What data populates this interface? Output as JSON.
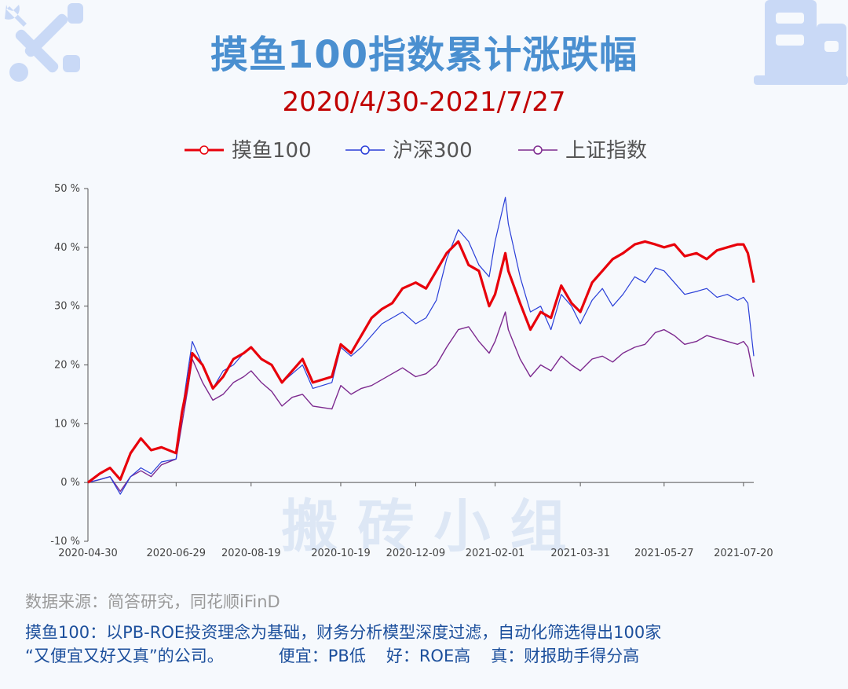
{
  "header": {
    "title": "摸鱼100指数累计涨跌幅",
    "subtitle": "2020/4/30-2021/7/27"
  },
  "watermark": "搬 砖 小 组",
  "footer": {
    "source": "数据来源：简答研究，同花顺iFinD",
    "line1": "摸鱼100：以PB-ROE投资理念为基础，财务分析模型深度过滤，自动化筛选得出100家",
    "line2a": "“又便宜又好又真”的公司。",
    "line2b": "便宜：PB低",
    "line2c": "好：ROE高",
    "line2d": "真：财报助手得分高"
  },
  "colors": {
    "title": "#4a8fd0",
    "subtitle": "#c00000",
    "moyu": "#e8000b",
    "hs300": "#2a3fd8",
    "sz": "#7d2a8f"
  },
  "chart_data": {
    "type": "line",
    "title": "摸鱼100指数累计涨跌幅",
    "subtitle": "2020/4/30-2021/7/27",
    "legend_position": "top-center",
    "ylim": [
      -10,
      50
    ],
    "yticks": [
      -10,
      0,
      10,
      20,
      30,
      40,
      50
    ],
    "ytick_labels": [
      "-10 %",
      "0 %",
      "10 %",
      "20 %",
      "30 %",
      "40 %",
      "50 %"
    ],
    "x_tick_labels": [
      "2020-04-30",
      "2020-06-29",
      "2020-08-19",
      "2020-10-19",
      "2020-12-09",
      "2021-02-01",
      "2021-03-31",
      "2021-05-27",
      "2021-07-20"
    ],
    "x": [
      "2020-04-30",
      "2020-05-08",
      "2020-05-15",
      "2020-05-22",
      "2020-05-29",
      "2020-06-05",
      "2020-06-12",
      "2020-06-19",
      "2020-06-29",
      "2020-07-03",
      "2020-07-07",
      "2020-07-10",
      "2020-07-17",
      "2020-07-24",
      "2020-07-31",
      "2020-08-07",
      "2020-08-14",
      "2020-08-19",
      "2020-08-26",
      "2020-09-02",
      "2020-09-09",
      "2020-09-16",
      "2020-09-23",
      "2020-09-30",
      "2020-10-13",
      "2020-10-19",
      "2020-10-26",
      "2020-11-02",
      "2020-11-09",
      "2020-11-16",
      "2020-11-23",
      "2020-11-30",
      "2020-12-09",
      "2020-12-16",
      "2020-12-23",
      "2020-12-30",
      "2021-01-07",
      "2021-01-14",
      "2021-01-21",
      "2021-01-28",
      "2021-02-01",
      "2021-02-08",
      "2021-02-10",
      "2021-02-18",
      "2021-02-25",
      "2021-03-04",
      "2021-03-11",
      "2021-03-18",
      "2021-03-25",
      "2021-03-31",
      "2021-04-08",
      "2021-04-15",
      "2021-04-22",
      "2021-04-29",
      "2021-05-07",
      "2021-05-14",
      "2021-05-21",
      "2021-05-27",
      "2021-06-03",
      "2021-06-10",
      "2021-06-18",
      "2021-06-25",
      "2021-07-02",
      "2021-07-09",
      "2021-07-16",
      "2021-07-20",
      "2021-07-23",
      "2021-07-27"
    ],
    "series": [
      {
        "name": "摸鱼100",
        "color": "#e8000b",
        "values": [
          0.0,
          1.5,
          2.5,
          0.5,
          5.0,
          7.5,
          5.5,
          6.0,
          5.0,
          12.0,
          17.0,
          22.0,
          20.0,
          16.0,
          18.0,
          21.0,
          22.0,
          23.0,
          21.0,
          20.0,
          17.0,
          19.0,
          21.0,
          17.0,
          18.0,
          23.5,
          22.0,
          25.0,
          28.0,
          29.5,
          30.5,
          33.0,
          34.0,
          33.0,
          36.0,
          39.0,
          41.0,
          37.0,
          36.0,
          30.0,
          32.0,
          39.0,
          36.0,
          30.5,
          26.0,
          29.0,
          28.0,
          33.5,
          30.5,
          29.0,
          34.0,
          36.0,
          38.0,
          39.0,
          40.5,
          41.0,
          40.5,
          40.0,
          40.5,
          38.5,
          39.0,
          38.0,
          39.5,
          40.0,
          40.5,
          40.5,
          39.0,
          34.0
        ]
      },
      {
        "name": "沪深300",
        "color": "#2a3fd8",
        "values": [
          0.0,
          0.5,
          1.0,
          -2.0,
          1.0,
          2.5,
          1.5,
          3.5,
          4.0,
          12.0,
          19.0,
          24.0,
          20.0,
          16.0,
          19.0,
          20.0,
          22.0,
          23.0,
          21.0,
          20.0,
          17.0,
          18.5,
          20.0,
          16.0,
          17.0,
          23.0,
          21.5,
          23.0,
          25.0,
          27.0,
          28.0,
          29.0,
          27.0,
          28.0,
          31.0,
          38.0,
          43.0,
          41.0,
          37.0,
          35.0,
          41.0,
          48.5,
          44.0,
          35.0,
          29.0,
          30.0,
          26.0,
          32.0,
          30.0,
          27.0,
          31.0,
          33.0,
          30.0,
          32.0,
          35.0,
          34.0,
          36.5,
          36.0,
          34.0,
          32.0,
          32.5,
          33.0,
          31.5,
          32.0,
          31.0,
          31.5,
          30.5,
          21.5
        ]
      },
      {
        "name": "上证指数",
        "color": "#7d2a8f",
        "values": [
          0.0,
          0.5,
          1.0,
          -1.5,
          1.0,
          2.0,
          1.0,
          3.0,
          4.0,
          10.0,
          16.0,
          21.0,
          17.0,
          14.0,
          15.0,
          17.0,
          18.0,
          19.0,
          17.0,
          15.5,
          13.0,
          14.5,
          15.0,
          13.0,
          12.5,
          16.5,
          15.0,
          16.0,
          16.5,
          17.5,
          18.5,
          19.5,
          18.0,
          18.5,
          20.0,
          23.0,
          26.0,
          26.5,
          24.0,
          22.0,
          24.0,
          29.0,
          26.0,
          21.0,
          18.0,
          20.0,
          19.0,
          21.5,
          20.0,
          19.0,
          21.0,
          21.5,
          20.5,
          22.0,
          23.0,
          23.5,
          25.5,
          26.0,
          25.0,
          23.5,
          24.0,
          25.0,
          24.5,
          24.0,
          23.5,
          24.0,
          23.0,
          18.0
        ]
      }
    ]
  }
}
